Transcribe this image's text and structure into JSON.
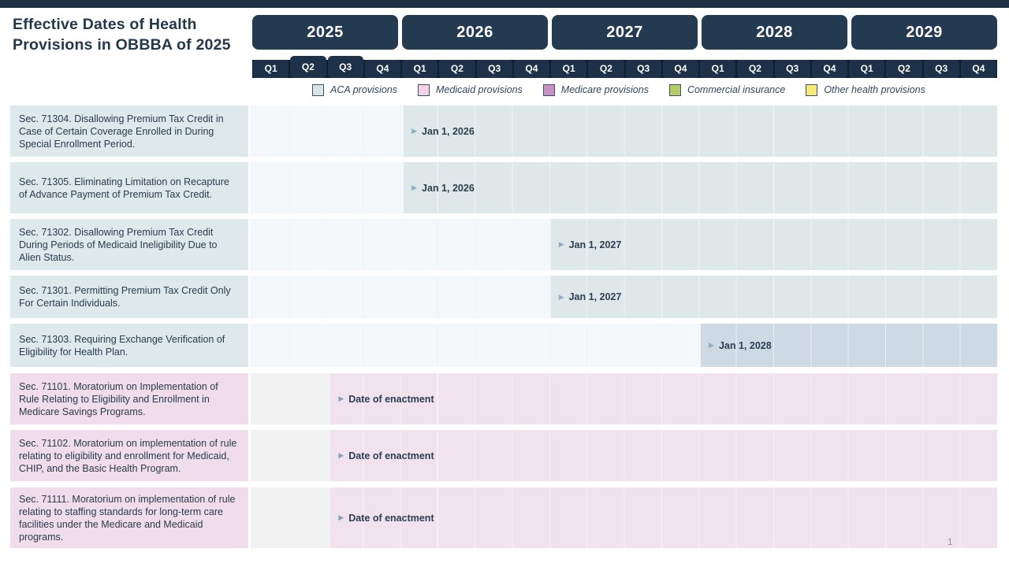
{
  "page": {
    "title": "Effective Dates of Health Provisions in OBBBA of 2025",
    "page_number": "1"
  },
  "palette": {
    "dark_navy": "#24384c",
    "quarter_band": "#0e2133",
    "aca_bar": "#dfe8e9",
    "aca_bar_2028_variant": "#cdd9e3",
    "aca_label_bg": "#dde9ea",
    "medicaid_bar": "#f1e3ee",
    "medicaid_label_bg": "#f0dcea",
    "marker_triangle_aca": "#8fadc7",
    "marker_triangle_medicaid": "#83a2ad"
  },
  "timeline": {
    "years": [
      "2025",
      "2026",
      "2027",
      "2028",
      "2029"
    ],
    "quarter_cells": [
      "Q1",
      "Q2",
      "Q3",
      "Q4",
      "Q1",
      "Q2",
      "Q3",
      "Q4",
      "Q1",
      "Q2",
      "Q3",
      "Q4",
      "Q1",
      "Q2",
      "Q3",
      "Q4",
      "Q1",
      "Q2",
      "Q3",
      "Q4"
    ]
  },
  "legend": [
    {
      "label": "ACA provisions",
      "color": "#d9e4e6"
    },
    {
      "label": "Medicaid provisions",
      "color": "#f3d2e7"
    },
    {
      "label": "Medicare provisions",
      "color": "#c791c5"
    },
    {
      "label": "Commercial insurance",
      "color": "#b4cb6a"
    },
    {
      "label": "Other health provisions",
      "color": "#f8ea79"
    }
  ],
  "chart_data": {
    "type": "gantt",
    "title": "Effective Dates of Health Provisions in OBBBA of 2025",
    "x_axis": {
      "range": [
        "2025 Q1",
        "2029 Q4"
      ],
      "granularity": "quarters",
      "years": [
        2025,
        2026,
        2027,
        2028,
        2029
      ]
    },
    "legend_position": "top",
    "rows": [
      {
        "label": "Sec. 71304. Disallowing Premium Tax Credit in Case of Certain Coverage Enrolled in During Special Enrollment Period.",
        "category": "ACA provisions",
        "date_label": "Jan 1, 2026",
        "bar_start": "2026 Q1",
        "bar_end": "2029 Q4"
      },
      {
        "label": "Sec. 71305. Eliminating Limitation on Recapture of Advance Payment of Premium Tax Credit.",
        "category": "ACA provisions",
        "date_label": "Jan 1, 2026",
        "bar_start": "2026 Q1",
        "bar_end": "2029 Q4"
      },
      {
        "label": "Sec. 71302. Disallowing Premium Tax Credit During Periods of Medicaid Ineligibility Due to Alien Status.",
        "category": "ACA provisions",
        "date_label": "Jan 1, 2027",
        "bar_start": "2027 Q1",
        "bar_end": "2029 Q4"
      },
      {
        "label": "Sec. 71301. Permitting Premium Tax Credit Only For Certain Individuals.",
        "category": "ACA provisions",
        "date_label": "Jan 1, 2027",
        "bar_start": "2027 Q1",
        "bar_end": "2029 Q4"
      },
      {
        "label": "Sec. 71303. Requiring Exchange Verification of Eligibility for Health Plan.",
        "category": "ACA provisions",
        "date_label": "Jan 1, 2028",
        "bar_start": "2028 Q1",
        "bar_end": "2029 Q4"
      },
      {
        "label": "Sec. 71101. Moratorium on Implementation of Rule Relating to Eligibility and Enrollment in Medicare Savings Programs.",
        "category": "Medicaid provisions",
        "date_label": "Date of enactment",
        "bar_start": "2025 Q3",
        "bar_end": "2029 Q4"
      },
      {
        "label": "Sec. 71102. Moratorium on implementation of rule relating to eligibility and enrollment for Medicaid, CHIP, and the Basic Health Program.",
        "category": "Medicaid provisions",
        "date_label": "Date of enactment",
        "bar_start": "2025 Q3",
        "bar_end": "2029 Q4"
      },
      {
        "label": "Sec. 71111. Moratorium on implementation of rule relating to staffing standards for long-term care facilities under the Medicare and Medicaid programs.",
        "category": "Medicaid provisions",
        "date_label": "Date of enactment",
        "bar_start": "2025 Q3",
        "bar_end": "2029 Q4"
      }
    ]
  }
}
